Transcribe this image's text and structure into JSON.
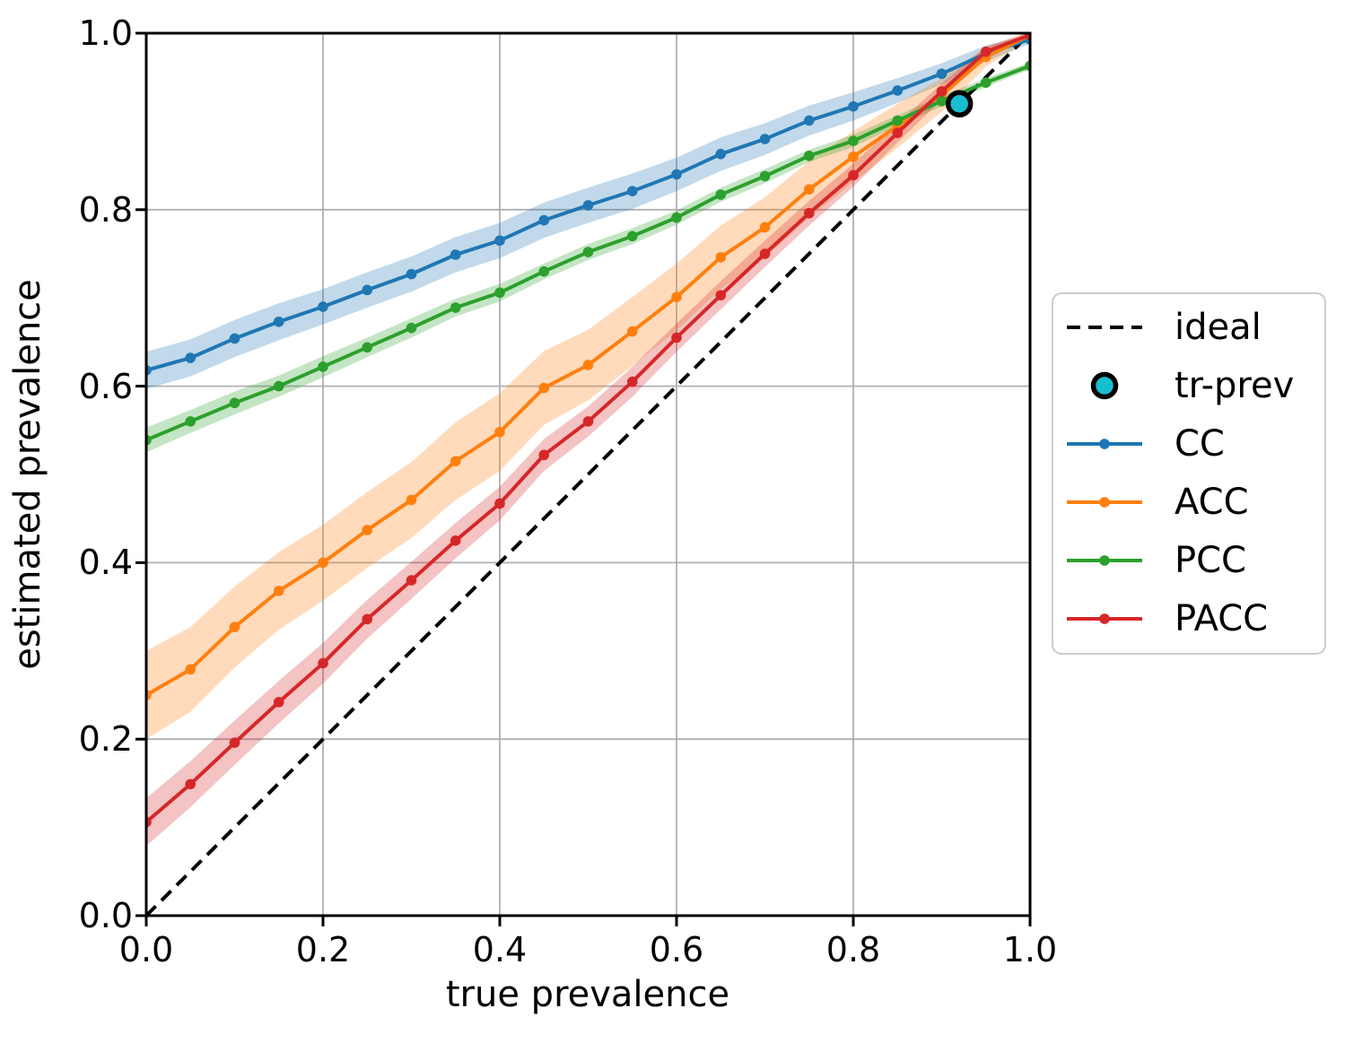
{
  "chart_data": {
    "type": "line",
    "title": "",
    "xlabel": "true prevalence",
    "ylabel": "estimated prevalence",
    "xlim": [
      0.0,
      1.0
    ],
    "ylim": [
      0.0,
      1.0
    ],
    "grid": true,
    "grid_color": "#b0b0b0",
    "background_color": "#ffffff",
    "x_ticks": [
      0.0,
      0.2,
      0.4,
      0.6,
      0.8,
      1.0
    ],
    "x_tick_labels": [
      "0.0",
      "0.2",
      "0.4",
      "0.6",
      "0.8",
      "1.0"
    ],
    "y_ticks": [
      0.0,
      0.2,
      0.4,
      0.6,
      0.8,
      1.0
    ],
    "y_tick_labels": [
      "0.0",
      "0.2",
      "0.4",
      "0.6",
      "0.8",
      "1.0"
    ],
    "x": [
      0.0,
      0.05,
      0.1,
      0.15,
      0.2,
      0.25,
      0.3,
      0.35,
      0.4,
      0.45,
      0.5,
      0.55,
      0.6,
      0.65,
      0.7,
      0.75,
      0.8,
      0.85,
      0.9,
      0.95,
      1.0
    ],
    "series": [
      {
        "name": "CC",
        "color": "#1f77b4",
        "values": [
          0.618,
          0.632,
          0.654,
          0.673,
          0.69,
          0.709,
          0.727,
          0.749,
          0.765,
          0.788,
          0.805,
          0.821,
          0.84,
          0.863,
          0.88,
          0.901,
          0.917,
          0.935,
          0.954,
          0.977,
          0.993
        ],
        "band_halfwidth": [
          0.021,
          0.021,
          0.021,
          0.021,
          0.02,
          0.02,
          0.02,
          0.02,
          0.02,
          0.02,
          0.02,
          0.02,
          0.019,
          0.019,
          0.018,
          0.017,
          0.016,
          0.014,
          0.012,
          0.009,
          0.005
        ]
      },
      {
        "name": "ACC",
        "color": "#ff7f0e",
        "values": [
          0.25,
          0.279,
          0.327,
          0.368,
          0.4,
          0.437,
          0.471,
          0.515,
          0.548,
          0.598,
          0.624,
          0.662,
          0.701,
          0.746,
          0.78,
          0.823,
          0.86,
          0.895,
          0.93,
          0.973,
          0.998
        ],
        "band_halfwidth": [
          0.05,
          0.048,
          0.046,
          0.044,
          0.043,
          0.043,
          0.043,
          0.044,
          0.044,
          0.042,
          0.04,
          0.039,
          0.038,
          0.036,
          0.034,
          0.032,
          0.029,
          0.025,
          0.019,
          0.011,
          0.004
        ]
      },
      {
        "name": "PCC",
        "color": "#2ca02c",
        "values": [
          0.539,
          0.56,
          0.581,
          0.6,
          0.622,
          0.644,
          0.666,
          0.689,
          0.706,
          0.73,
          0.752,
          0.77,
          0.791,
          0.817,
          0.838,
          0.861,
          0.878,
          0.901,
          0.923,
          0.944,
          0.963
        ],
        "band_halfwidth": [
          0.014,
          0.013,
          0.013,
          0.012,
          0.012,
          0.011,
          0.011,
          0.01,
          0.01,
          0.009,
          0.009,
          0.009,
          0.008,
          0.008,
          0.008,
          0.007,
          0.007,
          0.006,
          0.006,
          0.005,
          0.004
        ]
      },
      {
        "name": "PACC",
        "color": "#d62728",
        "values": [
          0.106,
          0.149,
          0.196,
          0.242,
          0.286,
          0.336,
          0.38,
          0.425,
          0.467,
          0.522,
          0.56,
          0.605,
          0.655,
          0.703,
          0.75,
          0.796,
          0.839,
          0.887,
          0.934,
          0.979,
          0.998
        ],
        "band_halfwidth": [
          0.027,
          0.026,
          0.025,
          0.024,
          0.023,
          0.022,
          0.021,
          0.02,
          0.019,
          0.018,
          0.017,
          0.017,
          0.016,
          0.016,
          0.015,
          0.014,
          0.013,
          0.011,
          0.009,
          0.006,
          0.003
        ]
      }
    ],
    "band_opacity": 0.28,
    "ideal": {
      "label": "ideal",
      "from": [
        0.0,
        0.0
      ],
      "to": [
        1.0,
        1.0
      ],
      "color": "#000000",
      "style": "dashed"
    },
    "tr_prev": {
      "label": "tr-prev",
      "x": 0.92,
      "y": 0.92,
      "color": "#17becf",
      "edge_color": "#000000"
    },
    "legend": [
      {
        "label": "ideal",
        "type": "dash",
        "color": "#000000"
      },
      {
        "label": "tr-prev",
        "type": "marker",
        "color": "#17becf"
      },
      {
        "label": "CC",
        "type": "line",
        "color": "#1f77b4"
      },
      {
        "label": "ACC",
        "type": "line",
        "color": "#ff7f0e"
      },
      {
        "label": "PCC",
        "type": "line",
        "color": "#2ca02c"
      },
      {
        "label": "PACC",
        "type": "line",
        "color": "#d62728"
      }
    ],
    "legend_position": "center right, outside axes"
  }
}
